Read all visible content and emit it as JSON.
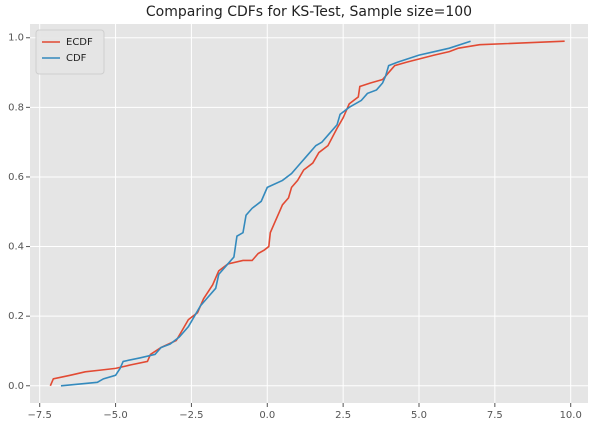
{
  "chart_data": {
    "type": "line",
    "title": "Comparing CDFs for KS-Test, Sample size=100",
    "series": [
      {
        "name": "ECDF",
        "color": "#E24A33",
        "x": [
          -7.15,
          -7.05,
          -6.5,
          -6.0,
          -5.5,
          -5.0,
          -4.5,
          -3.95,
          -3.85,
          -3.5,
          -3.0,
          -2.8,
          -2.6,
          -2.3,
          -2.1,
          -1.8,
          -1.6,
          -1.3,
          -0.8,
          -0.5,
          -0.3,
          -0.1,
          0.05,
          0.1,
          0.25,
          0.4,
          0.5,
          0.7,
          0.8,
          1.0,
          1.2,
          1.5,
          1.7,
          2.0,
          2.3,
          2.5,
          2.7,
          3.0,
          3.05,
          3.4,
          3.8,
          4.0,
          4.2,
          4.6,
          5.5,
          6.0,
          6.3,
          7.0,
          9.8
        ],
        "values": [
          0.0,
          0.02,
          0.03,
          0.04,
          0.045,
          0.05,
          0.06,
          0.07,
          0.09,
          0.11,
          0.13,
          0.16,
          0.19,
          0.21,
          0.25,
          0.29,
          0.33,
          0.35,
          0.36,
          0.36,
          0.38,
          0.39,
          0.4,
          0.44,
          0.47,
          0.5,
          0.52,
          0.54,
          0.57,
          0.59,
          0.62,
          0.64,
          0.67,
          0.69,
          0.74,
          0.77,
          0.81,
          0.83,
          0.86,
          0.87,
          0.88,
          0.9,
          0.92,
          0.93,
          0.95,
          0.96,
          0.97,
          0.98,
          0.99
        ]
      },
      {
        "name": "CDF",
        "color": "#348ABD",
        "x": [
          -6.8,
          -5.6,
          -5.4,
          -5.0,
          -4.85,
          -4.75,
          -4.2,
          -3.7,
          -3.5,
          -3.2,
          -2.9,
          -2.6,
          -2.4,
          -2.2,
          -2.0,
          -1.7,
          -1.6,
          -1.3,
          -1.1,
          -1.0,
          -0.8,
          -0.7,
          -0.5,
          -0.2,
          -0.05,
          0.0,
          0.5,
          0.8,
          1.0,
          1.3,
          1.6,
          1.8,
          2.0,
          2.3,
          2.4,
          2.7,
          3.1,
          3.3,
          3.6,
          3.8,
          3.9,
          4.0,
          4.3,
          5.0,
          5.5,
          6.0,
          6.7
        ],
        "values": [
          0.0,
          0.01,
          0.02,
          0.03,
          0.05,
          0.07,
          0.08,
          0.09,
          0.11,
          0.12,
          0.14,
          0.17,
          0.2,
          0.23,
          0.25,
          0.28,
          0.32,
          0.35,
          0.37,
          0.43,
          0.44,
          0.49,
          0.51,
          0.53,
          0.56,
          0.57,
          0.59,
          0.61,
          0.63,
          0.66,
          0.69,
          0.7,
          0.72,
          0.75,
          0.78,
          0.8,
          0.82,
          0.84,
          0.85,
          0.87,
          0.89,
          0.92,
          0.93,
          0.95,
          0.96,
          0.97,
          0.99
        ]
      }
    ],
    "xlim": [
      -7.82,
      10.57
    ],
    "ylim": [
      -0.0495,
      1.0395
    ],
    "xticks": [
      {
        "value": -7.5,
        "label": "−7.5"
      },
      {
        "value": -5.0,
        "label": "−5.0"
      },
      {
        "value": -2.5,
        "label": "−2.5"
      },
      {
        "value": 0,
        "label": "0.0"
      },
      2.5,
      {
        "value": 5,
        "label": "5.0"
      },
      7.5,
      {
        "value": 10,
        "label": "10.0"
      }
    ],
    "yticks": [
      {
        "value": 0,
        "label": "0.0"
      },
      0.2,
      0.4,
      0.6,
      0.8,
      {
        "value": 1,
        "label": "1.0"
      }
    ],
    "grid": true,
    "legend": "upper left"
  }
}
